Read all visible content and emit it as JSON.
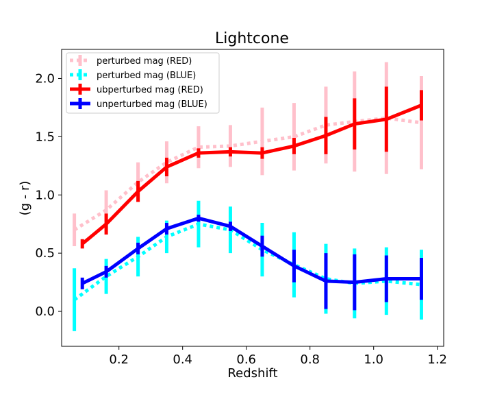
{
  "chart_data": {
    "type": "line",
    "title": "Lightcone",
    "xlabel": "Redshift",
    "ylabel": "(g - r)",
    "xlim": [
      0.02,
      1.22
    ],
    "ylim": [
      -0.3,
      2.25
    ],
    "xticks": [
      "0.2",
      "0.4",
      "0.6",
      "0.8",
      "1.0",
      "1.2"
    ],
    "yticks": [
      "0.0",
      "0.5",
      "1.0",
      "1.5",
      "2.0"
    ],
    "legend_position": "top-left",
    "series": [
      {
        "name": "perturbed mag (RED)",
        "color": "#ffc0cb",
        "style": "dotted",
        "x": [
          0.06,
          0.16,
          0.26,
          0.35,
          0.45,
          0.55,
          0.65,
          0.75,
          0.85,
          0.94,
          1.04,
          1.15
        ],
        "y": [
          0.7,
          0.87,
          1.11,
          1.28,
          1.41,
          1.42,
          1.46,
          1.5,
          1.6,
          1.63,
          1.66,
          1.62
        ],
        "err": [
          0.14,
          0.17,
          0.17,
          0.18,
          0.18,
          0.18,
          0.29,
          0.29,
          0.33,
          0.43,
          0.48,
          0.4
        ]
      },
      {
        "name": "perturbed mag (BLUE)",
        "color": "#00ffff",
        "style": "dotted",
        "x": [
          0.06,
          0.16,
          0.26,
          0.35,
          0.45,
          0.55,
          0.65,
          0.75,
          0.85,
          0.94,
          1.04,
          1.15
        ],
        "y": [
          0.1,
          0.3,
          0.47,
          0.64,
          0.75,
          0.7,
          0.53,
          0.4,
          0.28,
          0.24,
          0.26,
          0.23
        ],
        "err": [
          0.27,
          0.15,
          0.17,
          0.14,
          0.2,
          0.2,
          0.23,
          0.28,
          0.3,
          0.3,
          0.29,
          0.3
        ]
      },
      {
        "name": "ubperturbed mag (RED)",
        "color": "#ff0000",
        "style": "solid",
        "x": [
          0.085,
          0.16,
          0.26,
          0.35,
          0.45,
          0.55,
          0.65,
          0.75,
          0.85,
          0.94,
          1.04,
          1.15
        ],
        "y": [
          0.58,
          0.75,
          1.03,
          1.24,
          1.36,
          1.37,
          1.36,
          1.42,
          1.51,
          1.61,
          1.65,
          1.77
        ],
        "err": [
          0.04,
          0.09,
          0.09,
          0.08,
          0.04,
          0.04,
          0.05,
          0.07,
          0.16,
          0.22,
          0.28,
          0.13
        ]
      },
      {
        "name": "unperturbed mag (BLUE)",
        "color": "#0000ff",
        "style": "solid",
        "x": [
          0.085,
          0.16,
          0.26,
          0.35,
          0.45,
          0.55,
          0.65,
          0.75,
          0.85,
          0.94,
          1.04,
          1.15
        ],
        "y": [
          0.24,
          0.34,
          0.54,
          0.71,
          0.8,
          0.73,
          0.56,
          0.39,
          0.26,
          0.25,
          0.28,
          0.28
        ],
        "err": [
          0.05,
          0.05,
          0.05,
          0.05,
          0.03,
          0.04,
          0.09,
          0.14,
          0.24,
          0.24,
          0.2,
          0.18
        ]
      }
    ]
  }
}
